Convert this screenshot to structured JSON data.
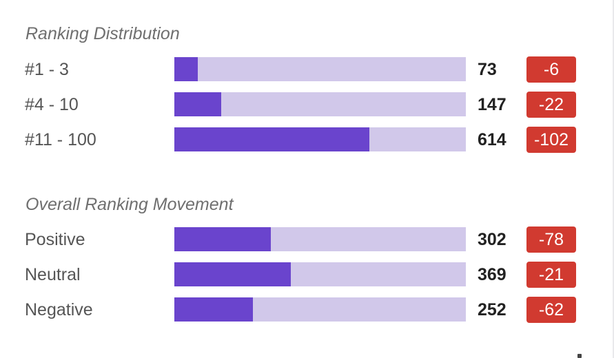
{
  "ranking_distribution": {
    "title": "Ranking Distribution",
    "rows": [
      {
        "label": "#1 - 3",
        "count": "73",
        "delta": "-6",
        "fill_fraction": 0.08
      },
      {
        "label": "#4 - 10",
        "count": "147",
        "delta": "-22",
        "fill_fraction": 0.16
      },
      {
        "label": "#11 - 100",
        "count": "614",
        "delta": "-102",
        "fill_fraction": 0.67
      }
    ]
  },
  "overall_movement": {
    "title": "Overall Ranking Movement",
    "rows": [
      {
        "label": "Positive",
        "count": "302",
        "delta": "-78",
        "fill_fraction": 0.33
      },
      {
        "label": "Neutral",
        "count": "369",
        "delta": "-21",
        "fill_fraction": 0.4
      },
      {
        "label": "Negative",
        "count": "252",
        "delta": "-62",
        "fill_fraction": 0.27
      }
    ]
  },
  "colors": {
    "bar_fill": "#6a44cd",
    "bar_track": "#d1c8ea",
    "delta_badge": "#d13a30"
  }
}
